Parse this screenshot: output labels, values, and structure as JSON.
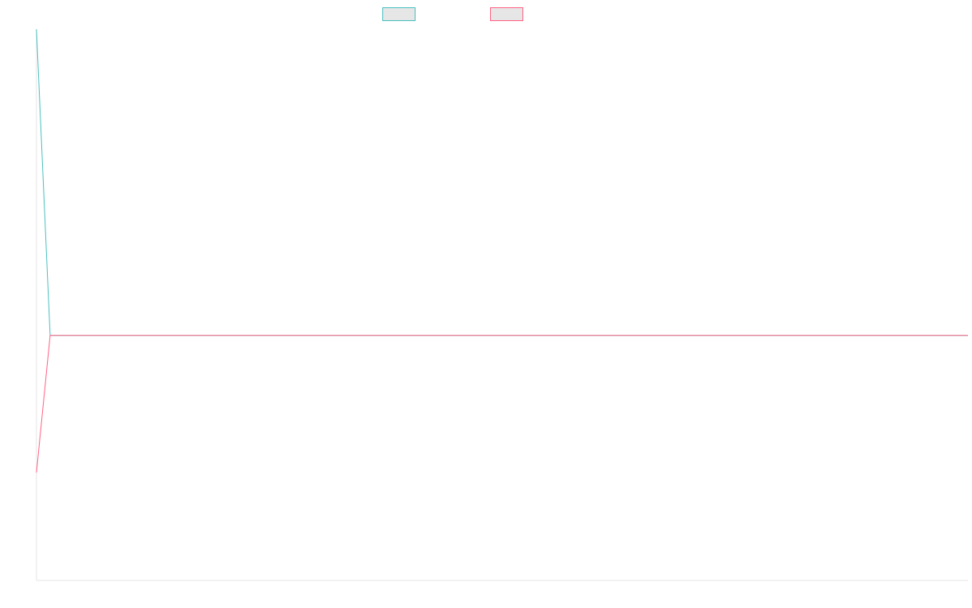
{
  "chart_data": {
    "type": "line",
    "title": "",
    "xlabel": "",
    "ylabel": "",
    "x": [
      0,
      1,
      2,
      3,
      4,
      5,
      6,
      7,
      8,
      9,
      10,
      11,
      12,
      13,
      14,
      15,
      16,
      17,
      18,
      19,
      20,
      21,
      22,
      23,
      24,
      25,
      26,
      27,
      28,
      29,
      30,
      31,
      32,
      33,
      34,
      35,
      36,
      37,
      38,
      39,
      40,
      41,
      42,
      43,
      44,
      45,
      46,
      47,
      48,
      49,
      50,
      51,
      52,
      53,
      54,
      55,
      56,
      57,
      58,
      59,
      60,
      61,
      62,
      63,
      64,
      65,
      66,
      67,
      68
    ],
    "xlim": [
      0,
      68
    ],
    "ylim": [
      -1,
      1.25
    ],
    "grid": false,
    "legend_position": "top-center",
    "series": [
      {
        "color": "#4bc0c0",
        "fill": "#e6e6e6",
        "values": [
          1.25,
          0,
          0,
          0,
          0,
          0,
          0,
          0,
          0,
          0,
          0,
          0,
          0,
          0,
          0,
          0,
          0,
          0,
          0,
          0,
          0,
          0,
          0,
          0,
          0,
          0,
          0,
          0,
          0,
          0,
          0,
          0,
          0,
          0,
          0,
          0,
          0,
          0,
          0,
          0,
          0,
          0,
          0,
          0,
          0,
          0,
          0,
          0,
          0,
          0,
          0,
          0,
          0,
          0,
          0,
          0,
          0,
          0,
          0,
          0,
          0,
          0,
          0,
          0,
          0,
          0,
          0,
          0,
          0
        ]
      },
      {
        "color": "#ff6384",
        "fill": "#e6e6e6",
        "values": [
          -0.56,
          0,
          0,
          0,
          0,
          0,
          0,
          0,
          0,
          0,
          0,
          0,
          0,
          0,
          0,
          0,
          0,
          0,
          0,
          0,
          0,
          0,
          0,
          0,
          0,
          0,
          0,
          0,
          0,
          0,
          0,
          0,
          0,
          0,
          0,
          0,
          0,
          0,
          0,
          0,
          0,
          0,
          0,
          0,
          0,
          0,
          0,
          0,
          0,
          0,
          0,
          0,
          0,
          0,
          0,
          0,
          0,
          0,
          0,
          0,
          0,
          0,
          0,
          0,
          0,
          0,
          0,
          0,
          0
        ]
      }
    ]
  }
}
